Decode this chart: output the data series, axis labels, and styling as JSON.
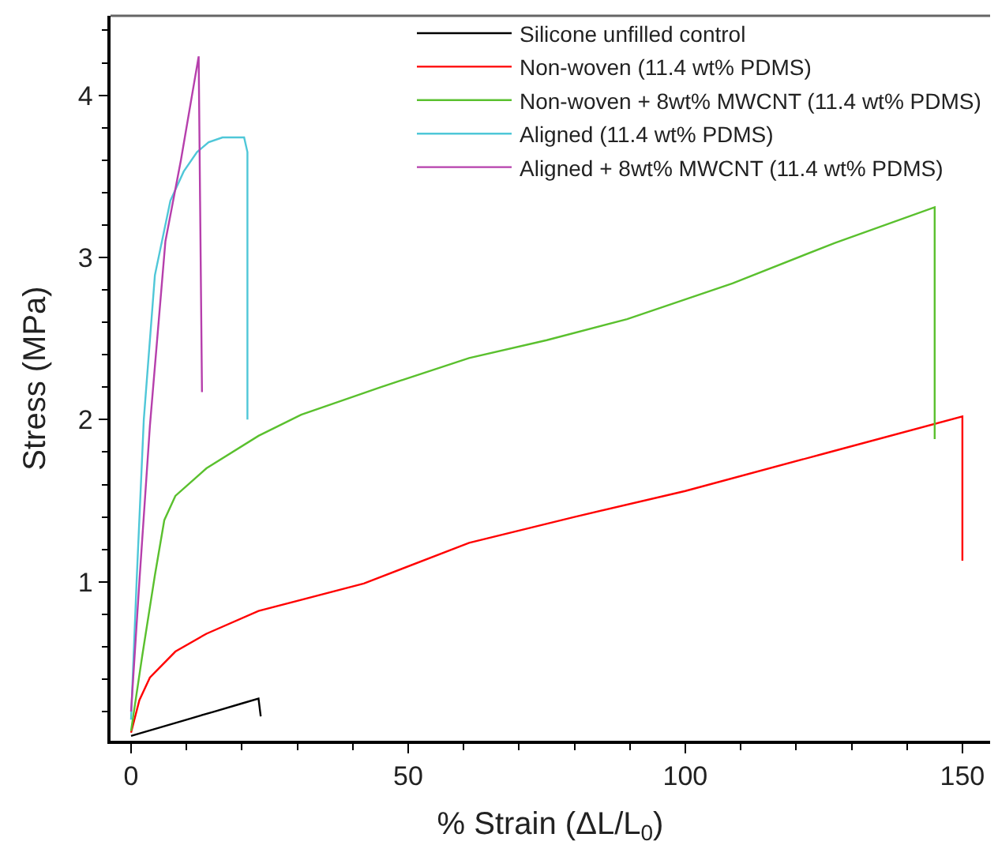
{
  "chart_data": {
    "type": "line",
    "xlabel": "% Strain (ΔL/L$_{0}$)",
    "ylabel": "Stress (MPa)",
    "xlim": [
      -3.7,
      155
    ],
    "ylim": [
      0.02,
      4.49
    ],
    "xticks": [
      0,
      50,
      100,
      150
    ],
    "yticks": [
      1,
      2,
      3,
      4
    ],
    "legend": "top right",
    "marker": "none",
    "line_style": "solid",
    "series": [
      {
        "name": "Silicone unfilled control",
        "color": "#000000",
        "x": [
          0,
          5,
          10,
          15,
          20,
          23,
          23.4
        ],
        "values": [
          0.05,
          0.1,
          0.15,
          0.2,
          0.25,
          0.28,
          0.17
        ]
      },
      {
        "name": "Non-woven (11.4 wt% PDMS)",
        "color": "#ff0000",
        "x": [
          0,
          1.5,
          3.4,
          8,
          13.6,
          23,
          42,
          61,
          80,
          100,
          125,
          150,
          150
        ],
        "values": [
          0.07,
          0.27,
          0.41,
          0.57,
          0.68,
          0.82,
          0.99,
          1.24,
          1.4,
          1.56,
          1.79,
          2.02,
          1.13
        ]
      },
      {
        "name": "Non-woven + 8wt% MWCNT (11.4 wt% PDMS)",
        "color": "#5ac02e",
        "x": [
          0,
          2,
          4.3,
          6,
          8,
          13.6,
          23,
          30.7,
          45,
          61,
          75,
          89.5,
          108.5,
          127,
          145,
          145
        ],
        "values": [
          0.08,
          0.54,
          1.04,
          1.38,
          1.53,
          1.7,
          1.9,
          2.03,
          2.2,
          2.38,
          2.49,
          2.62,
          2.84,
          3.09,
          3.31,
          1.88
        ]
      },
      {
        "name": "Aligned (11.4 wt% PDMS)",
        "color": "#4fc7d8",
        "x": [
          0,
          1,
          2.3,
          4.3,
          7.1,
          9.5,
          11.9,
          14,
          16.5,
          20.4,
          21,
          21
        ],
        "values": [
          0.15,
          1.0,
          2.0,
          2.89,
          3.35,
          3.53,
          3.65,
          3.71,
          3.74,
          3.74,
          3.65,
          2.0
        ]
      },
      {
        "name": "Aligned + 8wt% MWCNT (11.4 wt% PDMS)",
        "color": "#b63fac",
        "x": [
          0,
          1.5,
          3.4,
          6.2,
          9,
          12.2,
          12.8
        ],
        "values": [
          0.2,
          1.0,
          1.96,
          3.1,
          3.6,
          4.24,
          2.17
        ]
      }
    ]
  }
}
